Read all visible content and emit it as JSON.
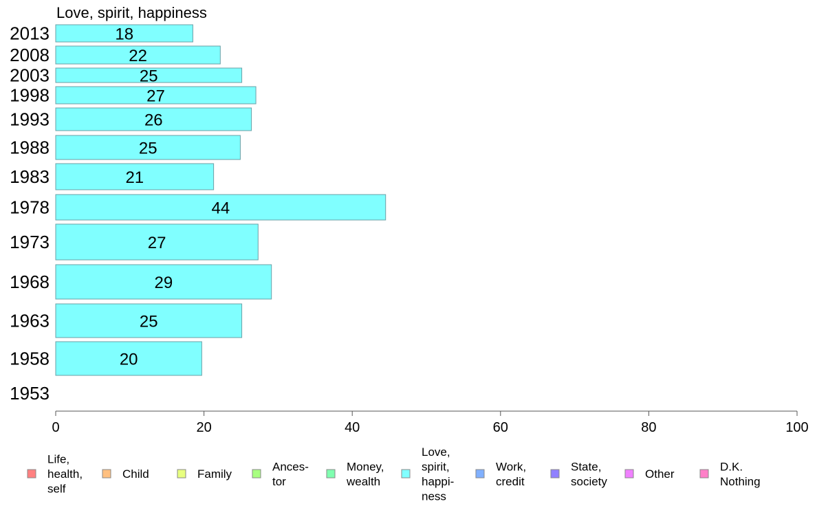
{
  "chart_data": {
    "type": "bar",
    "orientation": "horizontal",
    "title": "Love, spirit, happiness",
    "categories": [
      "2013",
      "2008",
      "2003",
      "1998",
      "1993",
      "1988",
      "1983",
      "1978",
      "1973",
      "1968",
      "1963",
      "1958",
      "1953"
    ],
    "series": [
      {
        "name": "Love, spirit, happiness",
        "values": [
          18,
          22,
          25,
          27,
          26,
          25,
          21,
          44,
          27,
          29,
          25,
          20,
          null
        ],
        "data_values": [
          18.5,
          22.2,
          25.1,
          27.0,
          26.4,
          24.9,
          21.3,
          44.5,
          27.3,
          29.1,
          25.1,
          19.7,
          null
        ],
        "color": "#80ffff"
      }
    ],
    "xlim": [
      0,
      100
    ],
    "xticks": [
      0,
      20,
      40,
      60,
      80,
      100
    ],
    "xlabel": "",
    "ylabel": "",
    "grid": false,
    "legend_position": "bottom",
    "legend": [
      {
        "lines": [
          "Life,",
          "health,",
          "self"
        ],
        "color": "#ff8080"
      },
      {
        "lines": [
          "Child"
        ],
        "color": "#ffc080"
      },
      {
        "lines": [
          "Family"
        ],
        "color": "#e8ff80"
      },
      {
        "lines": [
          "Ances-",
          "tor"
        ],
        "color": "#a8ff80"
      },
      {
        "lines": [
          "Money,",
          "wealth"
        ],
        "color": "#80ffb0"
      },
      {
        "lines": [
          "Love,",
          "spirit,",
          "happi-",
          "ness"
        ],
        "color": "#80ffff"
      },
      {
        "lines": [
          "Work,",
          "credit"
        ],
        "color": "#80b0ff"
      },
      {
        "lines": [
          "State,",
          "society"
        ],
        "color": "#9080ff"
      },
      {
        "lines": [
          "Other"
        ],
        "color": "#f080ff"
      },
      {
        "lines": [
          "D.K.",
          "Nothing"
        ],
        "color": "#ff80c8"
      }
    ]
  }
}
